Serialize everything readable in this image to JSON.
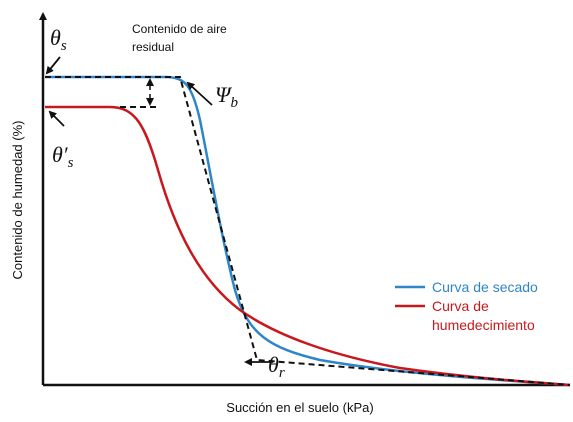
{
  "diagram": {
    "y_axis_label": "Contenido de humedad (%)",
    "x_axis_label": "Succión en el suelo (kPa)",
    "note_lines": [
      "Contenido de aire",
      "residual"
    ],
    "symbols": [
      {
        "base": "θ",
        "sub": "s"
      },
      {
        "base": "θ′",
        "sub": "s"
      },
      {
        "base": "Ψ",
        "sub": "b"
      },
      {
        "base": "θ",
        "sub": "r"
      }
    ],
    "legend": [
      {
        "lines": [
          "Curva de secado"
        ],
        "color": "#2e86c9"
      },
      {
        "lines": [
          "Curva de",
          "humedecimiento"
        ],
        "color": "#c8181e"
      }
    ]
  }
}
